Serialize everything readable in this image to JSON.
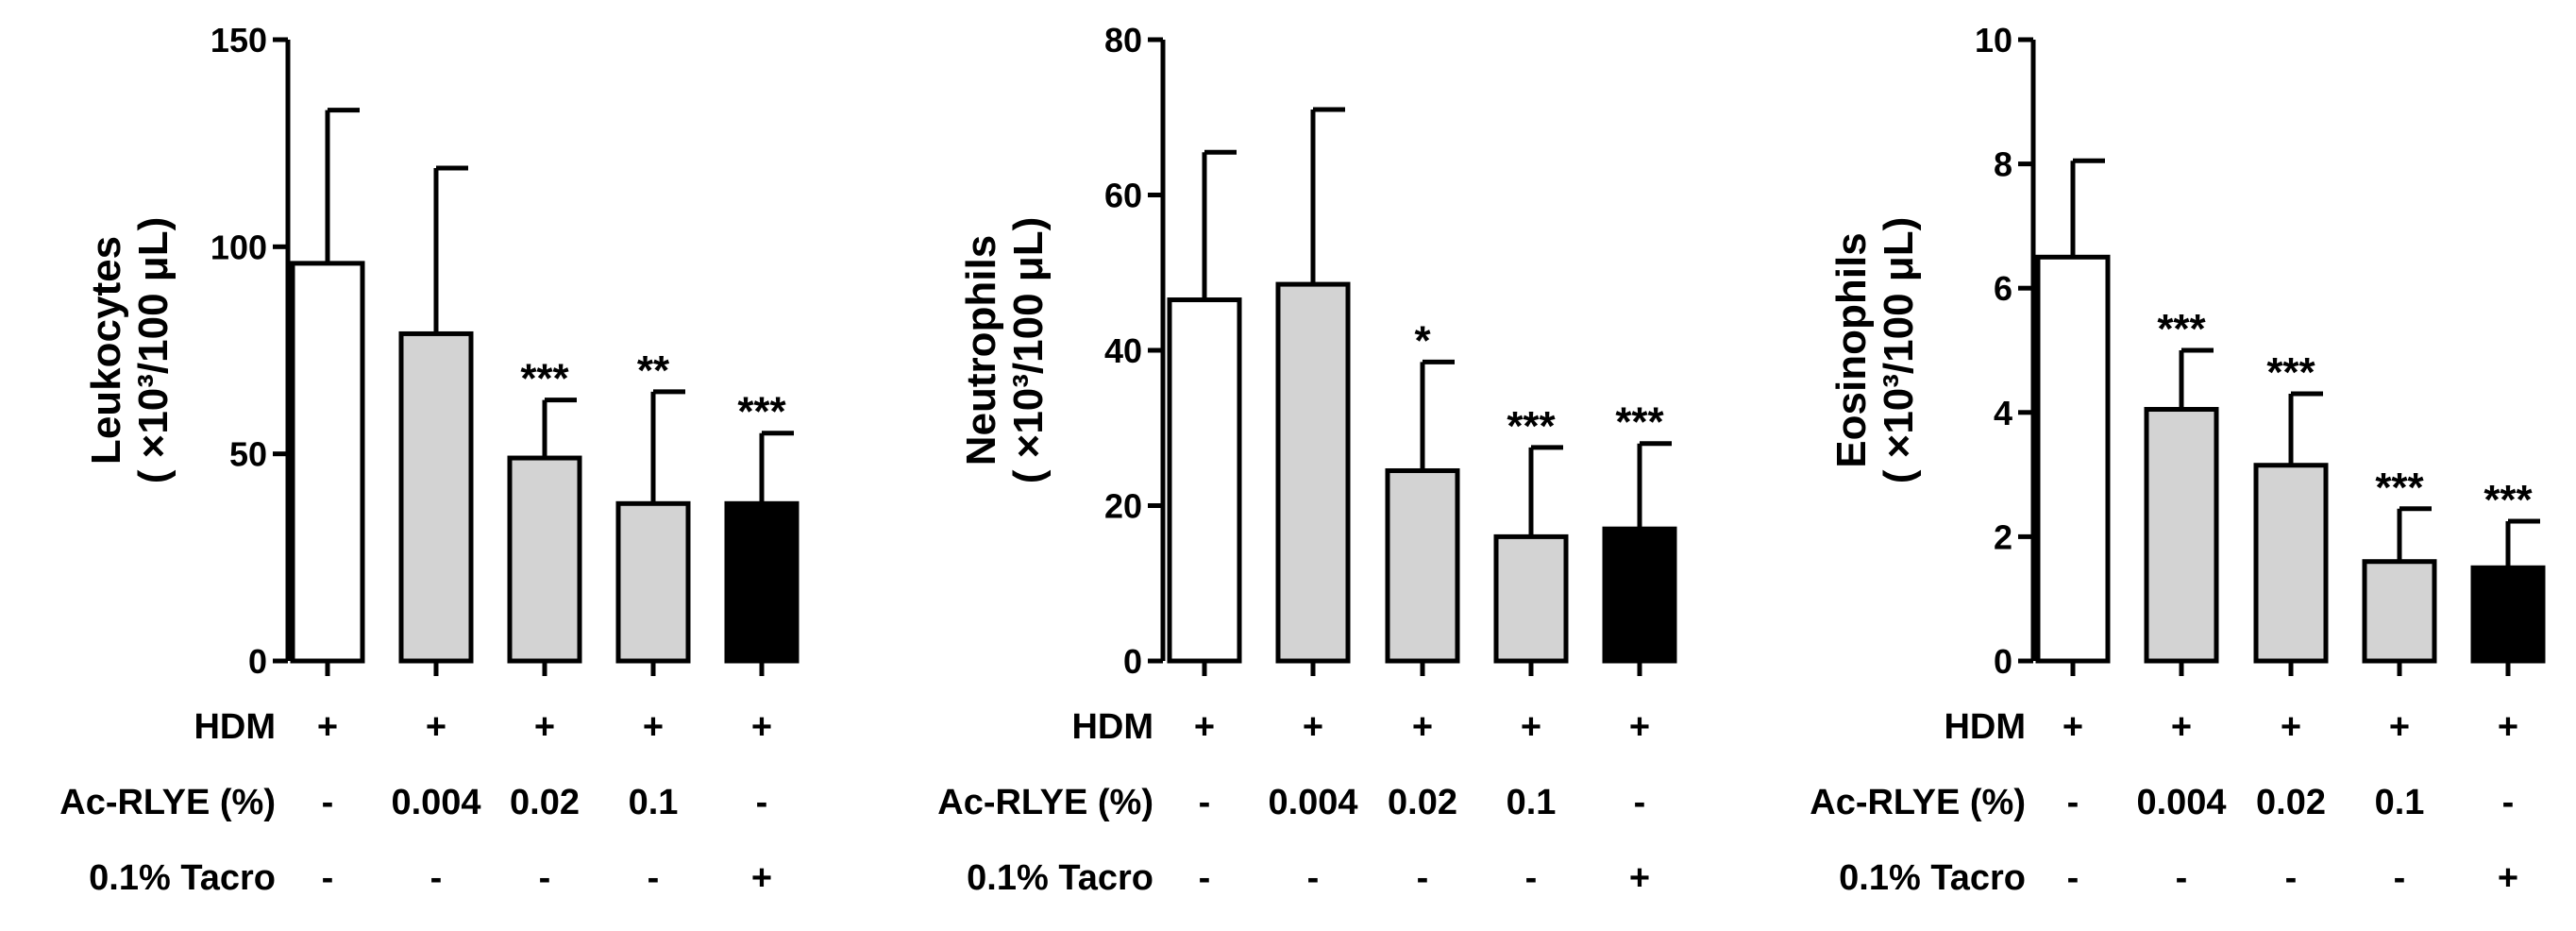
{
  "chart_data": [
    {
      "type": "bar",
      "ylabel_line1": "Leukocytes",
      "ylabel_line2": "( ×10³/100 μL)",
      "ylim": [
        0,
        150
      ],
      "yticks": [
        "0",
        "50",
        "100",
        "150"
      ],
      "ytick_values": [
        0,
        50,
        100,
        150
      ],
      "values": [
        96,
        79,
        49,
        38,
        38
      ],
      "errors": [
        37,
        40,
        14,
        27,
        17
      ],
      "significance": [
        "",
        "",
        "***",
        "**",
        "***"
      ],
      "bar_colors": [
        "#ffffff",
        "#d3d3d3",
        "#d3d3d3",
        "#d3d3d3",
        "#000000"
      ]
    },
    {
      "type": "bar",
      "ylabel_line1": "Neutrophils",
      "ylabel_line2": "( ×10³/100 μL)",
      "ylim": [
        0,
        80
      ],
      "yticks": [
        "0",
        "20",
        "40",
        "60",
        "80"
      ],
      "ytick_values": [
        0,
        20,
        40,
        60,
        80
      ],
      "values": [
        46.5,
        48.5,
        24.5,
        16,
        17
      ],
      "errors": [
        19,
        22.5,
        14,
        11.5,
        11
      ],
      "significance": [
        "",
        "",
        "*",
        "***",
        "***"
      ],
      "bar_colors": [
        "#ffffff",
        "#d3d3d3",
        "#d3d3d3",
        "#d3d3d3",
        "#000000"
      ]
    },
    {
      "type": "bar",
      "ylabel_line1": "Eosinophils",
      "ylabel_line2": "( ×10³/100 μL)",
      "ylim": [
        0,
        10
      ],
      "yticks": [
        "0",
        "2",
        "4",
        "6",
        "8",
        "10"
      ],
      "ytick_values": [
        0,
        2,
        4,
        6,
        8,
        10
      ],
      "values": [
        6.5,
        4.05,
        3.15,
        1.6,
        1.5
      ],
      "errors": [
        1.55,
        0.95,
        1.15,
        0.85,
        0.75
      ],
      "significance": [
        "",
        "***",
        "***",
        "***",
        "***"
      ],
      "bar_colors": [
        "#ffffff",
        "#d3d3d3",
        "#d3d3d3",
        "#d3d3d3",
        "#000000"
      ]
    }
  ],
  "conditions": [
    {
      "label": "HDM",
      "values": [
        "+",
        "+",
        "+",
        "+",
        "+"
      ]
    },
    {
      "label": "Ac-RLYE (%)",
      "values": [
        "-",
        "0.004",
        "0.02",
        "0.1",
        "-"
      ]
    },
    {
      "label": "0.1% Tacro",
      "values": [
        "-",
        "-",
        "-",
        "-",
        "+"
      ]
    }
  ]
}
